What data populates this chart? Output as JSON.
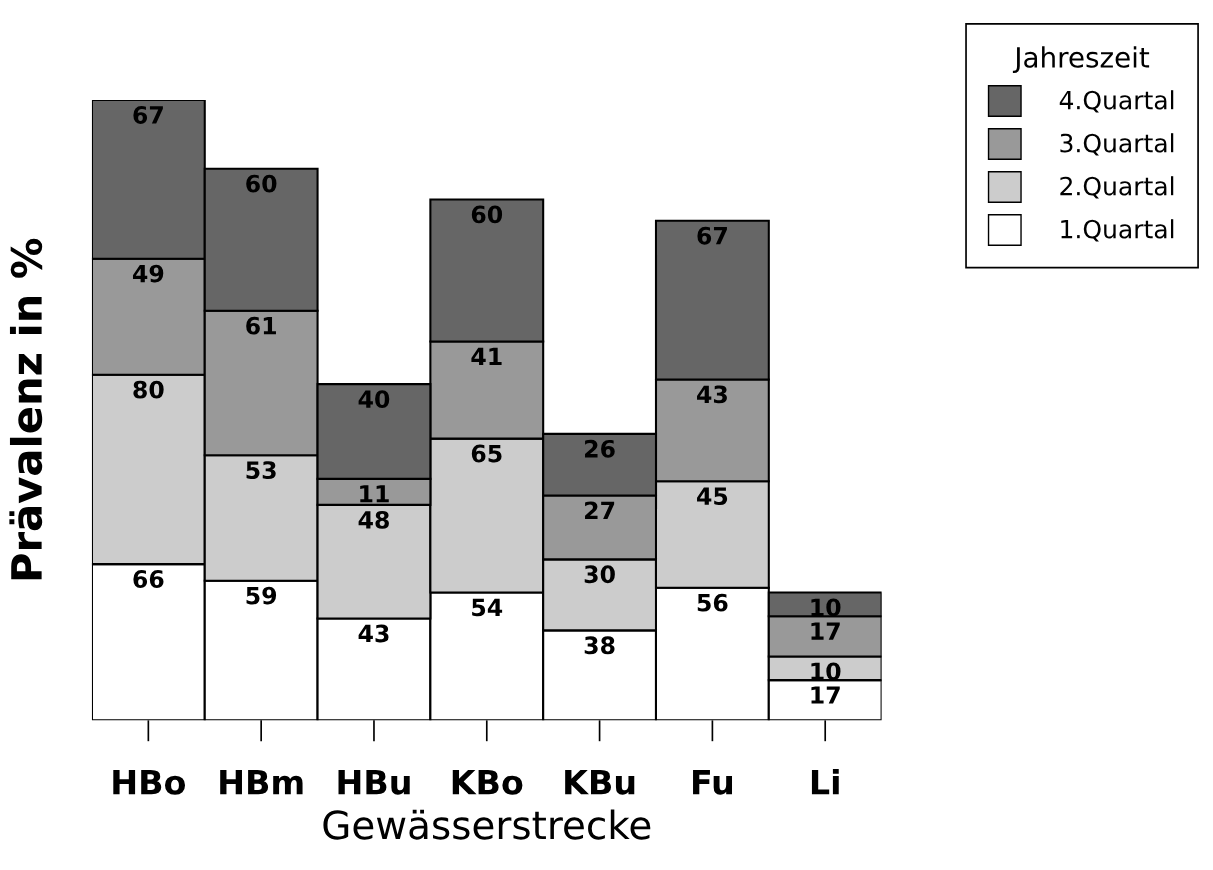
{
  "chart_data": {
    "type": "bar",
    "stacked": true,
    "xlabel": "Gewässerstrecke",
    "ylabel": "Prävalenz in %",
    "legend_title": "Jahreszeit",
    "legend": "top right",
    "tick_labels": "x",
    "data_labels": true,
    "categories": [
      "HBo",
      "HBm",
      "HBu",
      "KBo",
      "KBu",
      "Fu",
      "Li"
    ],
    "series": [
      {
        "name": "1.Quartal",
        "color": "#ffffff",
        "values": [
          66,
          59,
          43,
          54,
          38,
          56,
          17
        ]
      },
      {
        "name": "2.Quartal",
        "color": "#cccccc",
        "values": [
          80,
          53,
          48,
          65,
          30,
          45,
          10
        ]
      },
      {
        "name": "3.Quartal",
        "color": "#999999",
        "values": [
          49,
          61,
          11,
          41,
          27,
          43,
          17
        ]
      },
      {
        "name": "4.Quartal",
        "color": "#666666",
        "values": [
          67,
          60,
          40,
          60,
          26,
          67,
          10
        ]
      }
    ]
  }
}
